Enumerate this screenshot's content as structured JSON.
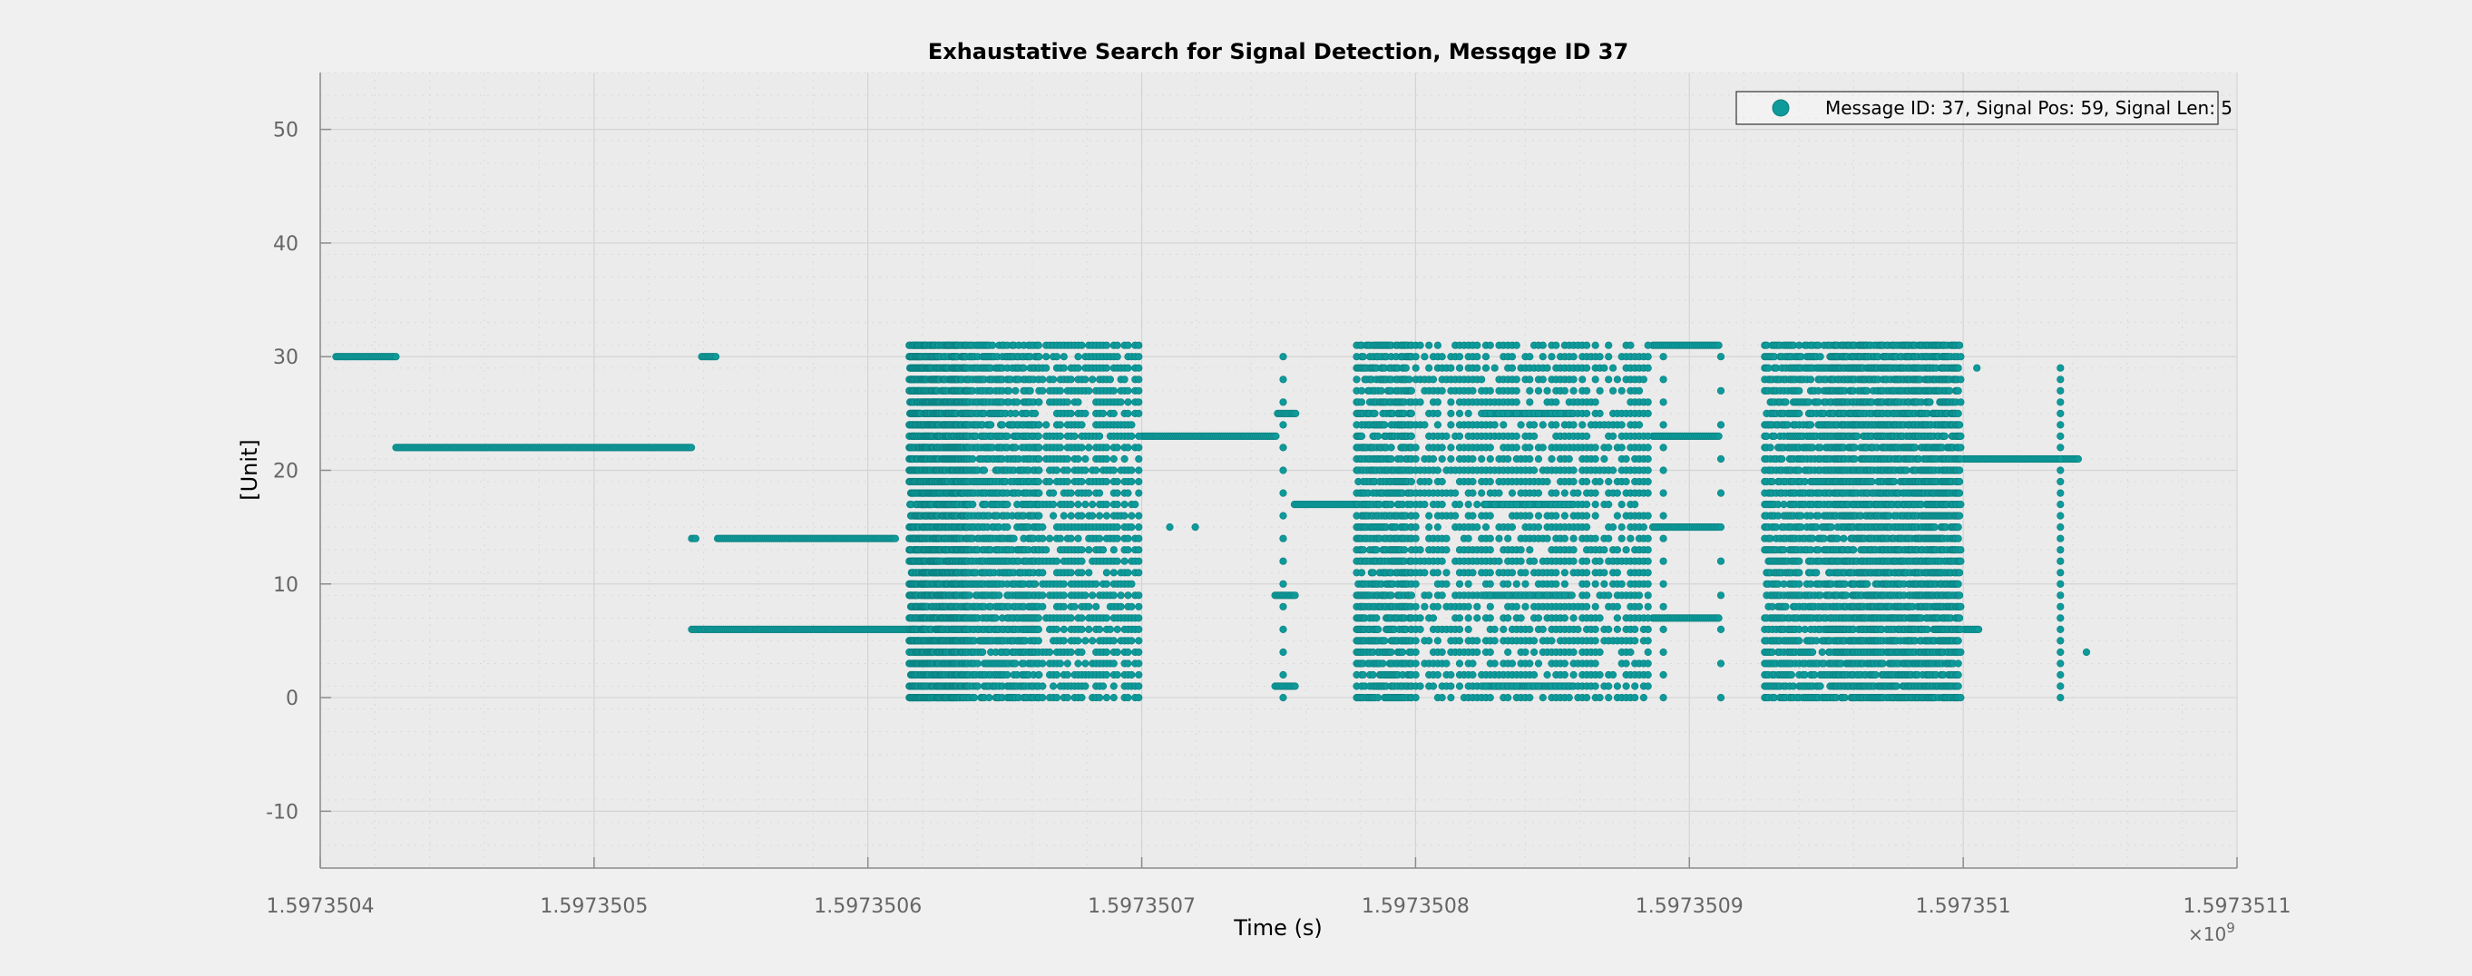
{
  "chart_data": {
    "type": "scatter",
    "title": "Exhaustative Search for Signal Detection, Messqge ID 37",
    "xlabel": "Time (s)",
    "ylabel": "[Unit]",
    "x_exponent_label": "×10",
    "x_exponent_power": "9",
    "xlim": [
      1.5973504,
      1.5973511
    ],
    "ylim": [
      -15,
      55
    ],
    "xticks": [
      1.5973504,
      1.5973505,
      1.5973506,
      1.5973507,
      1.5973508,
      1.5973509,
      1.597351,
      1.5973511
    ],
    "xtick_labels": [
      "1.5973504",
      "1.5973505",
      "1.5973506",
      "1.5973507",
      "1.5973508",
      "1.5973509",
      "1.597351",
      "1.5973511"
    ],
    "yticks": [
      -10,
      0,
      10,
      20,
      30,
      40,
      50
    ],
    "ytick_labels": [
      "-10",
      "0",
      "10",
      "20",
      "30",
      "40",
      "50"
    ],
    "grid": true,
    "minor_grid": true,
    "legend_position": "top-right",
    "marker_color": "#0e9a9a",
    "marker_edge_color": "#0b7f7f",
    "series": [
      {
        "name": "Message ID: 37, Signal Pos: 59, Signal Len: 5",
        "segments": [
          {
            "x_start": 1.59735040575,
            "x_end": 1.59735042765,
            "y": 30
          },
          {
            "x_start": 1.59735042765,
            "x_end": 1.59735053565,
            "y": 22
          },
          {
            "x_start": 1.59735053565,
            "x_end": 1.59735053725,
            "y": 14
          },
          {
            "x_start": 1.59735053565,
            "x_end": 1.59735061565,
            "y": 6
          },
          {
            "x_start": 1.59735053935,
            "x_end": 1.59735054515,
            "y": 30
          },
          {
            "x_start": 1.59735054515,
            "x_end": 1.59735061035,
            "y": 14
          },
          {
            "x_start": 1.59735070015,
            "x_end": 1.59735074965,
            "y": 23
          },
          {
            "x_start": 1.59735074965,
            "x_end": 1.59735075665,
            "y": 25
          },
          {
            "x_start": 1.5973507487,
            "x_end": 1.5973507565,
            "y": 9
          },
          {
            "x_start": 1.5973507487,
            "x_end": 1.5973507565,
            "y": 1
          },
          {
            "x_start": 1.59735075575,
            "x_end": 1.5973507785,
            "y": 17
          },
          {
            "x_start": 1.59735082505,
            "x_end": 1.59735085725,
            "y": 25
          },
          {
            "x_start": 1.59735082505,
            "x_end": 1.59735085725,
            "y": 17
          },
          {
            "x_start": 1.59735082505,
            "x_end": 1.59735085725,
            "y": 9
          },
          {
            "x_start": 1.59735082505,
            "x_end": 1.59735085725,
            "y": 1
          },
          {
            "x_start": 1.59735088665,
            "x_end": 1.59735091125,
            "y": 31
          },
          {
            "x_start": 1.59735088665,
            "x_end": 1.59735091125,
            "y": 23
          },
          {
            "x_start": 1.59735088665,
            "x_end": 1.59735091125,
            "y": 15
          },
          {
            "x_start": 1.59735088665,
            "x_end": 1.59735091125,
            "y": 7
          },
          {
            "x_start": 1.59735100045,
            "x_end": 1.59735104245,
            "y": 21
          },
          {
            "x_start": 1.5973510005,
            "x_end": 1.59735100565,
            "y": 6
          }
        ],
        "dense_blocks": [
          {
            "x_start": 1.5973506151,
            "x_end": 1.5973506365,
            "y_min": 0,
            "y_max": 31,
            "x_step": 2.8e-10
          },
          {
            "x_start": 1.5973506365,
            "x_end": 1.5973506625,
            "y_min": 0,
            "y_max": 31,
            "x_step": 6e-10
          },
          {
            "x_start": 1.5973506625,
            "x_end": 1.5973506995,
            "y_min": 0,
            "y_max": 31,
            "x_step": 1.3e-09
          },
          {
            "x_start": 1.5973507785,
            "x_end": 1.5973507985,
            "y_min": 0,
            "y_max": 31,
            "x_step": 6e-10
          },
          {
            "x_start": 1.5973507985,
            "x_end": 1.5973508855,
            "y_min": 0,
            "y_max": 31,
            "x_step": 1.6e-09
          },
          {
            "x_start": 1.5973509275,
            "x_end": 1.5973509505,
            "y_min": 0,
            "y_max": 31,
            "x_step": 7e-10
          },
          {
            "x_start": 1.5973509505,
            "x_end": 1.5973509995,
            "y_min": 0,
            "y_max": 31,
            "x_step": 4.5e-10
          }
        ],
        "sparse_columns": [
          {
            "x": 1.59735075165,
            "y_min": 0,
            "y_max": 31,
            "y_step": 2
          },
          {
            "x": 1.5973508905,
            "y_min": 0,
            "y_max": 31,
            "y_step": 2
          },
          {
            "x": 1.5973509115,
            "y_min": 0,
            "y_max": 31,
            "y_step": 3
          },
          {
            "x": 1.5973510355,
            "y_min": 0,
            "y_max": 29,
            "y_step": 1
          }
        ],
        "points": [
          {
            "x": 1.59735071025,
            "y": 15
          },
          {
            "x": 1.59735071955,
            "y": 15
          },
          {
            "x": 1.597351005,
            "y": 29
          },
          {
            "x": 1.597351045,
            "y": 4
          }
        ]
      }
    ]
  }
}
